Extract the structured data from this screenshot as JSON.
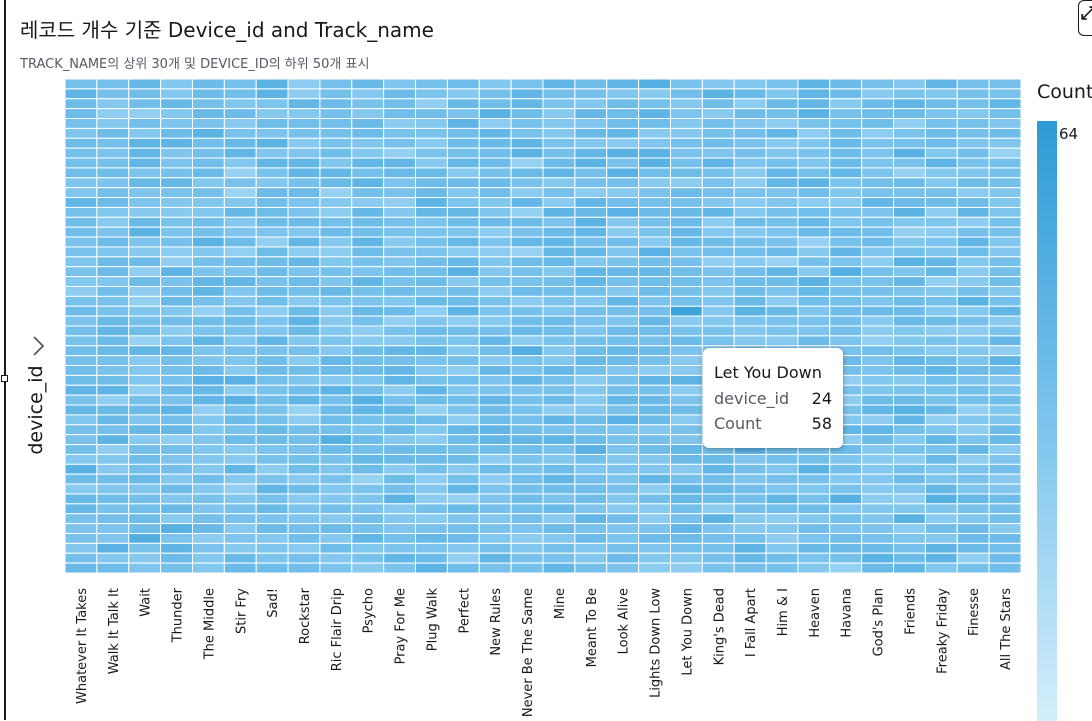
{
  "title": "레코드 개수 기준 Device_id and Track_name",
  "subtitle": "TRACK_NAME의 상위 30개 및 DEVICE_ID의 하위 50개 표시",
  "icons": {
    "expand": "chevron-right-icon",
    "corner": "expand-icon"
  },
  "colors": {
    "low": "#d4eefb",
    "mid": "#84c8ef",
    "high": "#2d9bd6",
    "cell_border": "#ffffff"
  },
  "legend": {
    "title": "Count",
    "max_label": "64",
    "max": 64
  },
  "tooltip": {
    "title": "Let You Down",
    "rows": [
      {
        "key": "device_id",
        "value": "24"
      },
      {
        "key": "Count",
        "value": "58"
      }
    ]
  },
  "chart_data": {
    "type": "heatmap",
    "title": "레코드 개수 기준 Device_id and Track_name",
    "subtitle": "TRACK_NAME의 상위 30개 및 DEVICE_ID의 하위 50개 표시",
    "xlabel": "",
    "ylabel": "device_id",
    "x_categories": [
      "Whatever It Takes",
      "Walk It Talk It",
      "Wait",
      "Thunder",
      "The Middle",
      "Stir Fry",
      "Sad!",
      "Rockstar",
      "Ric Flair Drip",
      "Psycho",
      "Pray For Me",
      "Plug Walk",
      "Perfect",
      "New Rules",
      "Never Be The Same",
      "Mine",
      "Meant To Be",
      "Look Alive",
      "Lights Down Low",
      "Let You Down",
      "King's Dead",
      "I Fall Apart",
      "Him & I",
      "Heaven",
      "Havana",
      "God's Plan",
      "Friends",
      "Freaky Friday",
      "Finesse",
      "All The Stars"
    ],
    "y_count": 50,
    "value_range": [
      0,
      64
    ],
    "legend": "right",
    "known_values": [
      {
        "track": "Let You Down",
        "device_id": 24,
        "count": 58
      }
    ]
  }
}
